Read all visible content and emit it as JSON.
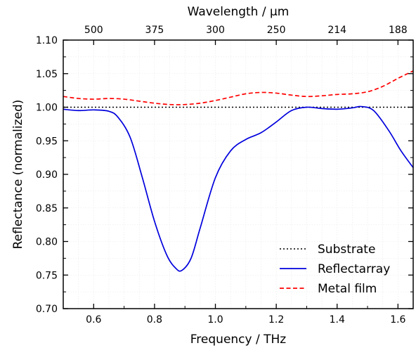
{
  "chart_data": {
    "type": "line",
    "xlabel": "Frequency / THz",
    "ylabel": "Reflectance (normalized)",
    "top_xlabel": "Wavelength / µm",
    "xlim": [
      0.5,
      1.65
    ],
    "ylim": [
      0.7,
      1.1
    ],
    "x_ticks": [
      0.6,
      0.8,
      1.0,
      1.2,
      1.4,
      1.6
    ],
    "x_tick_labels": [
      "0.6",
      "0.8",
      "1.0",
      "1.2",
      "1.4",
      "1.6"
    ],
    "y_ticks": [
      0.7,
      0.75,
      0.8,
      0.85,
      0.9,
      0.95,
      1.0,
      1.05,
      1.1
    ],
    "y_tick_labels": [
      "0.70",
      "0.75",
      "0.80",
      "0.85",
      "0.90",
      "0.95",
      "1.00",
      "1.05",
      "1.10"
    ],
    "top_ticks": [
      {
        "freq": 0.6,
        "label": "500"
      },
      {
        "freq": 0.8,
        "label": "375"
      },
      {
        "freq": 1.0,
        "label": "300"
      },
      {
        "freq": 1.2,
        "label": "250"
      },
      {
        "freq": 1.4,
        "label": "214"
      },
      {
        "freq": 1.6,
        "label": "188"
      }
    ],
    "grid": true,
    "legend_position": "bottom-right",
    "series": [
      {
        "name": "Substrate",
        "color": "#000000",
        "style": "dotted",
        "x": [
          0.5,
          1.65
        ],
        "y": [
          1.0,
          1.0
        ]
      },
      {
        "name": "Reflectarray",
        "color": "#0000dd",
        "style": "solid",
        "x": [
          0.5,
          0.55,
          0.6,
          0.65,
          0.68,
          0.72,
          0.76,
          0.8,
          0.84,
          0.87,
          0.89,
          0.92,
          0.95,
          1.0,
          1.05,
          1.1,
          1.15,
          1.2,
          1.25,
          1.3,
          1.35,
          1.4,
          1.45,
          1.48,
          1.52,
          1.57,
          1.61,
          1.65
        ],
        "y": [
          0.997,
          0.995,
          0.996,
          0.994,
          0.985,
          0.955,
          0.895,
          0.83,
          0.78,
          0.76,
          0.757,
          0.775,
          0.82,
          0.895,
          0.935,
          0.952,
          0.962,
          0.978,
          0.995,
          1.0,
          0.998,
          0.997,
          0.999,
          1.001,
          0.995,
          0.965,
          0.935,
          0.91
        ]
      },
      {
        "name": "Metal film",
        "color": "#ff0000",
        "style": "dashed",
        "x": [
          0.5,
          0.55,
          0.6,
          0.65,
          0.7,
          0.75,
          0.8,
          0.85,
          0.9,
          0.95,
          1.0,
          1.05,
          1.1,
          1.15,
          1.2,
          1.25,
          1.3,
          1.35,
          1.4,
          1.45,
          1.5,
          1.55,
          1.6,
          1.65
        ],
        "y": [
          1.016,
          1.013,
          1.012,
          1.013,
          1.012,
          1.009,
          1.006,
          1.004,
          1.004,
          1.006,
          1.01,
          1.015,
          1.02,
          1.022,
          1.021,
          1.018,
          1.016,
          1.017,
          1.019,
          1.02,
          1.023,
          1.031,
          1.043,
          1.054
        ]
      }
    ]
  }
}
